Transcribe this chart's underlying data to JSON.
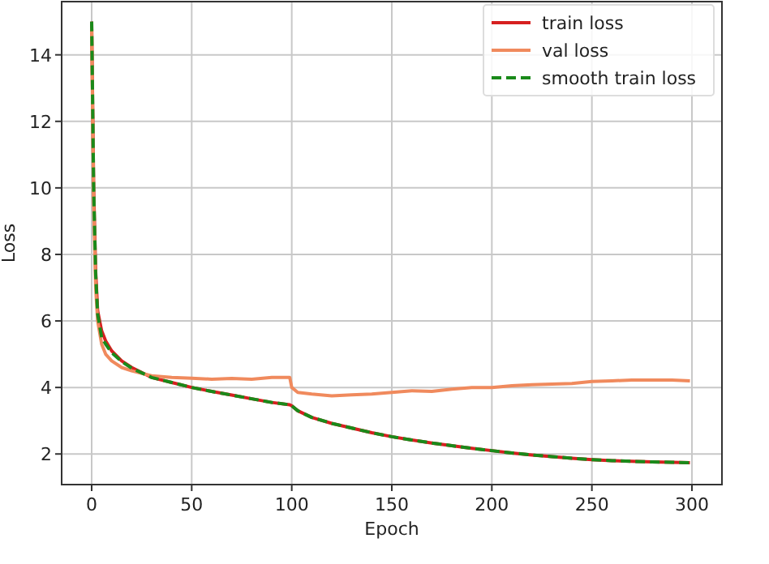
{
  "chart_data": {
    "type": "line",
    "xlabel": "Epoch",
    "ylabel": "Loss",
    "xlim": [
      -15,
      315
    ],
    "ylim": [
      1.08,
      15.6
    ],
    "xticks": [
      0,
      50,
      100,
      150,
      200,
      250,
      300
    ],
    "yticks": [
      2,
      4,
      6,
      8,
      10,
      12,
      14
    ],
    "grid": true,
    "legend": "top right",
    "line_style": "solid",
    "x": [
      0,
      1,
      2,
      3,
      5,
      7,
      10,
      15,
      20,
      30,
      40,
      50,
      60,
      70,
      80,
      90,
      99,
      100,
      103,
      110,
      120,
      130,
      140,
      150,
      160,
      170,
      180,
      190,
      200,
      210,
      220,
      230,
      240,
      250,
      260,
      270,
      280,
      290,
      299
    ],
    "series": [
      {
        "name": "train loss",
        "color": "#d62020",
        "values": [
          15,
          10,
          7.5,
          6.3,
          5.7,
          5.4,
          5.1,
          4.8,
          4.6,
          4.3,
          4.15,
          4.0,
          3.88,
          3.77,
          3.66,
          3.55,
          3.48,
          3.45,
          3.3,
          3.1,
          2.92,
          2.78,
          2.64,
          2.52,
          2.42,
          2.33,
          2.25,
          2.17,
          2.1,
          2.03,
          1.97,
          1.92,
          1.87,
          1.83,
          1.8,
          1.78,
          1.76,
          1.75,
          1.74
        ]
      },
      {
        "name": "val loss",
        "color": "#f08a5d",
        "values": [
          14.8,
          9.5,
          7,
          6,
          5.3,
          5.0,
          4.8,
          4.6,
          4.5,
          4.35,
          4.3,
          4.28,
          4.25,
          4.27,
          4.25,
          4.3,
          4.3,
          4.0,
          3.85,
          3.8,
          3.75,
          3.78,
          3.8,
          3.85,
          3.9,
          3.88,
          3.95,
          4.0,
          4.0,
          4.05,
          4.08,
          4.1,
          4.12,
          4.18,
          4.2,
          4.22,
          4.22,
          4.22,
          4.2
        ]
      },
      {
        "name": "smooth train loss",
        "color": "#1a8a1a",
        "line_style": "dashed",
        "values": [
          15,
          10,
          7.4,
          6.2,
          5.5,
          5.3,
          5.05,
          4.78,
          4.58,
          4.3,
          4.15,
          4.0,
          3.88,
          3.77,
          3.66,
          3.55,
          3.48,
          3.45,
          3.3,
          3.1,
          2.92,
          2.78,
          2.64,
          2.52,
          2.42,
          2.33,
          2.25,
          2.17,
          2.1,
          2.03,
          1.97,
          1.92,
          1.87,
          1.83,
          1.8,
          1.78,
          1.76,
          1.75,
          1.74
        ]
      }
    ]
  }
}
